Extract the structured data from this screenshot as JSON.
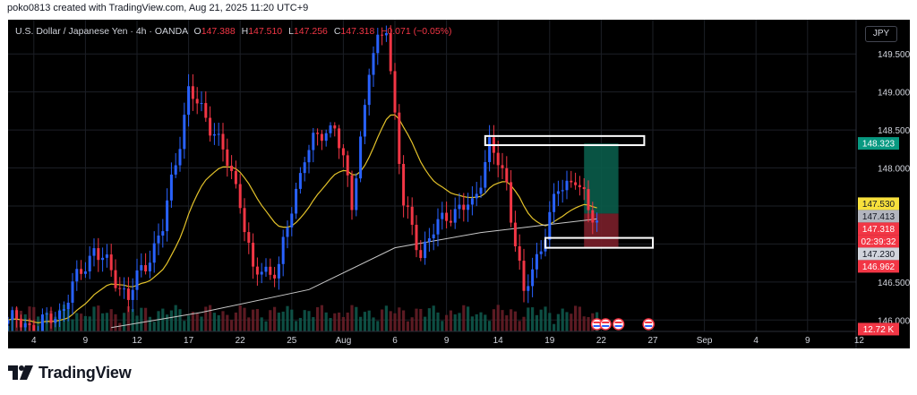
{
  "caption": "poko0813 created with TradingView.com, Aug 21, 2025 11:20 UTC+9",
  "header": {
    "symbol": "U.S. Dollar / Japanese Yen · 4h · OANDA",
    "o_label": "O",
    "o_value": "147.388",
    "h_label": "H",
    "h_value": "147.510",
    "l_label": "L",
    "l_value": "147.256",
    "c_label": "C",
    "c_value": "147.318",
    "change": "−0.071 (−0.05%)"
  },
  "currency": "JPY",
  "brand": {
    "name": "TradingView"
  },
  "colors": {
    "bull": "#2962ff",
    "bear": "#f23645",
    "ema": "#e3c22a",
    "ma": "#c8c8c8",
    "target_zone": "#0a5c4a",
    "stop_zone": "#7a1f2a",
    "grid": "#1c1f26",
    "axis_text": "#d1d4dc"
  },
  "chart_data": {
    "type": "candlestick",
    "symbol": "USDJPY",
    "timeframe": "4h",
    "y_ticks": [
      "149.500",
      "149.000",
      "148.500",
      "148.000",
      "146.500",
      "146.000"
    ],
    "y_tick_values": [
      149.5,
      149.0,
      148.5,
      148.0,
      146.5,
      146.0
    ],
    "x_ticks": [
      "4",
      "9",
      "12",
      "17",
      "22",
      "25",
      "Aug",
      "6",
      "9",
      "14",
      "19",
      "22",
      "27",
      "Sep",
      "4",
      "9",
      "12"
    ],
    "x_tick_slots": [
      6,
      18,
      30,
      42,
      54,
      66,
      78,
      90,
      102,
      114,
      126,
      138,
      150,
      162,
      174,
      186,
      198
    ],
    "ylim": [
      145.85,
      149.95
    ],
    "price_labels": [
      {
        "label": "148.323",
        "value": 148.323,
        "color": "#089981",
        "text_color": "#ffffff"
      },
      {
        "label": "147.530",
        "value": 147.53,
        "color": "#f7e03c",
        "text_color": "#131722"
      },
      {
        "label": "147.413",
        "value": 147.413,
        "color": "#b2b5be",
        "text_color": "#131722"
      },
      {
        "label": "147.318",
        "value": 147.318,
        "color": "#f23645",
        "text_color": "#ffffff"
      },
      {
        "label": "02:39:32",
        "value": 147.18,
        "color": "#f23645",
        "text_color": "#ffffff"
      },
      {
        "label": "147.230",
        "value": 147.0,
        "color": "#d1d4dc",
        "text_color": "#131722"
      },
      {
        "label": "146.962",
        "value": 146.78,
        "color": "#f23645",
        "text_color": "#ffffff"
      },
      {
        "label": "12.72 K",
        "value": 145.88,
        "color": "#f23645",
        "text_color": "#ffffff"
      }
    ],
    "boxes": [
      {
        "x_start": 111,
        "x_end": 148,
        "top": 148.42,
        "bottom": 148.3
      },
      {
        "x_start": 125,
        "x_end": 150,
        "top": 147.08,
        "bottom": 146.95
      }
    ],
    "position": {
      "x_start": 134,
      "x_end": 142,
      "entry": 147.4,
      "target": 148.323,
      "stop": 146.962
    },
    "event_icons": [
      137,
      139,
      142,
      149
    ],
    "anchors": [
      [
        0,
        146.0
      ],
      [
        7,
        145.9
      ],
      [
        12,
        146.1
      ],
      [
        20,
        146.95
      ],
      [
        28,
        146.3
      ],
      [
        36,
        147.2
      ],
      [
        42,
        149.0
      ],
      [
        48,
        148.5
      ],
      [
        54,
        147.6
      ],
      [
        57,
        146.6
      ],
      [
        63,
        146.7
      ],
      [
        69,
        148.2
      ],
      [
        76,
        148.6
      ],
      [
        80,
        147.5
      ],
      [
        84,
        149.3
      ],
      [
        88,
        149.9
      ],
      [
        92,
        147.5
      ],
      [
        96,
        146.9
      ],
      [
        102,
        147.4
      ],
      [
        108,
        147.5
      ],
      [
        112,
        148.3
      ],
      [
        116,
        147.8
      ],
      [
        120,
        146.3
      ],
      [
        124,
        147.0
      ],
      [
        128,
        147.7
      ],
      [
        132,
        147.9
      ],
      [
        135,
        147.4
      ],
      [
        137,
        147.32
      ]
    ],
    "ma_anchors": [
      [
        24,
        145.9
      ],
      [
        45,
        146.1
      ],
      [
        70,
        146.4
      ],
      [
        90,
        146.95
      ],
      [
        110,
        147.15
      ],
      [
        125,
        147.25
      ],
      [
        137,
        147.33
      ]
    ]
  }
}
